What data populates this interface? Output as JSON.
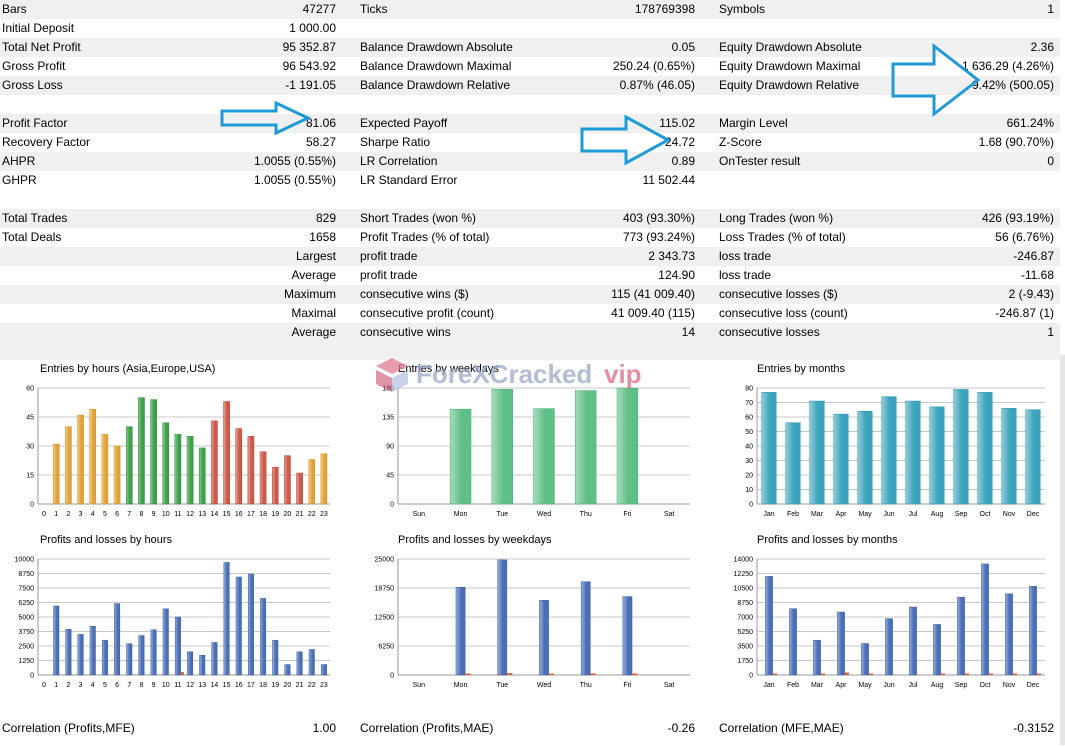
{
  "stats": {
    "rows": [
      {
        "shaded": true,
        "cells": [
          "Bars",
          "47277",
          "Ticks",
          "178769398",
          "Symbols",
          "1"
        ]
      },
      {
        "shaded": false,
        "cells": [
          "Initial Deposit",
          "1 000.00",
          "",
          "",
          "",
          ""
        ]
      },
      {
        "shaded": true,
        "cells": [
          "Total Net Profit",
          "95 352.87",
          "Balance Drawdown Absolute",
          "0.05",
          "Equity Drawdown Absolute",
          "2.36"
        ]
      },
      {
        "shaded": false,
        "cells": [
          "Gross Profit",
          "96 543.92",
          "Balance Drawdown Maximal",
          "250.24 (0.65%)",
          "Equity Drawdown Maximal",
          "1 636.29 (4.26%)"
        ]
      },
      {
        "shaded": true,
        "cells": [
          "Gross Loss",
          "-1 191.05",
          "Balance Drawdown Relative",
          "0.87% (46.05)",
          "Equity Drawdown Relative",
          "9.42% (500.05)"
        ]
      },
      {
        "shaded": false,
        "blank": true,
        "cells": [
          "",
          "",
          "",
          "",
          "",
          ""
        ]
      },
      {
        "shaded": true,
        "cells": [
          "Profit Factor",
          "81.06",
          "Expected Payoff",
          "115.02",
          "Margin Level",
          "661.24%"
        ]
      },
      {
        "shaded": false,
        "cells": [
          "Recovery Factor",
          "58.27",
          "Sharpe Ratio",
          "24.72",
          "Z-Score",
          "1.68 (90.70%)"
        ]
      },
      {
        "shaded": true,
        "cells": [
          "AHPR",
          "1.0055 (0.55%)",
          "LR Correlation",
          "0.89",
          "OnTester result",
          "0"
        ]
      },
      {
        "shaded": false,
        "cells": [
          "GHPR",
          "1.0055 (0.55%)",
          "LR Standard Error",
          "11 502.44",
          "",
          ""
        ]
      },
      {
        "shaded": false,
        "blank": true,
        "cells": [
          "",
          "",
          "",
          "",
          "",
          ""
        ]
      },
      {
        "shaded": true,
        "cells": [
          "Total Trades",
          "829",
          "Short Trades (won %)",
          "403 (93.30%)",
          "Long Trades (won %)",
          "426 (93.19%)"
        ]
      },
      {
        "shaded": false,
        "cells": [
          "Total Deals",
          "1658",
          "Profit Trades (% of total)",
          "773 (93.24%)",
          "Loss Trades (% of total)",
          "56 (6.76%)"
        ]
      },
      {
        "shaded": true,
        "right1": true,
        "cells": [
          "Largest",
          "",
          "profit trade",
          "2 343.73",
          "loss trade",
          "-246.87"
        ]
      },
      {
        "shaded": false,
        "right1": true,
        "cells": [
          "Average",
          "",
          "profit trade",
          "124.90",
          "loss trade",
          "-11.68"
        ]
      },
      {
        "shaded": true,
        "right1": true,
        "cells": [
          "Maximum",
          "",
          "consecutive wins ($)",
          "115 (41 009.40)",
          "consecutive losses ($)",
          "2 (-9.43)"
        ]
      },
      {
        "shaded": false,
        "right1": true,
        "cells": [
          "Maximal",
          "",
          "consecutive profit (count)",
          "41 009.40 (115)",
          "consecutive loss (count)",
          "-246.87 (1)"
        ]
      },
      {
        "shaded": true,
        "right1": true,
        "cells": [
          "Average",
          "",
          "consecutive wins",
          "14",
          "consecutive losses",
          "1"
        ]
      }
    ]
  },
  "watermark": {
    "text1": "ForeXCracked",
    "text2": "vip"
  },
  "correlation": {
    "cells": [
      "Correlation (Profits,MFE)",
      "1.00",
      "Correlation (Profits,MAE)",
      "-0.26",
      "Correlation (MFE,MAE)",
      "-0.3152"
    ]
  },
  "colors": {
    "orange": "#e1a23a",
    "green": "#3fa04b",
    "red": "#cc5a4a",
    "mint": "#5fbf86",
    "teal": "#3aa4bd",
    "blue": "#4a6fb8",
    "loss": "#d8603c",
    "arrow": "#1e9bd7"
  },
  "chart_data": [
    {
      "type": "bar",
      "title": "Entries by hours (Asia,Europe,USA)",
      "categories": [
        "0",
        "1",
        "2",
        "3",
        "4",
        "5",
        "6",
        "7",
        "8",
        "9",
        "10",
        "11",
        "12",
        "13",
        "14",
        "15",
        "16",
        "17",
        "18",
        "19",
        "20",
        "21",
        "22",
        "23"
      ],
      "values": [
        0,
        31,
        40,
        46,
        49,
        36,
        30,
        40,
        55,
        54,
        42,
        36,
        35,
        29,
        43,
        53,
        39,
        35,
        27,
        19,
        25,
        16,
        23,
        26
      ],
      "group_colors": [
        "orange",
        "orange",
        "orange",
        "orange",
        "orange",
        "orange",
        "orange",
        "green",
        "green",
        "green",
        "green",
        "green",
        "green",
        "green",
        "red",
        "red",
        "red",
        "red",
        "red",
        "red",
        "red",
        "red",
        "orange",
        "orange"
      ],
      "ylim": [
        0,
        60
      ],
      "yticks": [
        "0",
        "15",
        "30",
        "45",
        "60"
      ]
    },
    {
      "type": "bar",
      "title": "Entries by weekdays",
      "categories": [
        "Sun",
        "Mon",
        "Tue",
        "Wed",
        "Thu",
        "Fri",
        "Sat"
      ],
      "values": [
        0,
        147,
        178,
        148,
        176,
        180,
        0
      ],
      "ylim": [
        0,
        180
      ],
      "yticks": [
        "0",
        "45",
        "90",
        "135",
        "180"
      ]
    },
    {
      "type": "bar",
      "title": "Entries by months",
      "categories": [
        "Jan",
        "Feb",
        "Mar",
        "Apr",
        "May",
        "Jun",
        "Jul",
        "Aug",
        "Sep",
        "Oct",
        "Nov",
        "Dec"
      ],
      "values": [
        77,
        56,
        71,
        62,
        64,
        74,
        71,
        67,
        79,
        77,
        66,
        65
      ],
      "ylim": [
        0,
        80
      ],
      "yticks": [
        "0",
        "10",
        "20",
        "30",
        "40",
        "50",
        "60",
        "70",
        "80"
      ]
    },
    {
      "type": "bar",
      "title": "Profits and losses by hours",
      "categories": [
        "0",
        "1",
        "2",
        "3",
        "4",
        "5",
        "6",
        "7",
        "8",
        "9",
        "10",
        "11",
        "12",
        "13",
        "14",
        "15",
        "16",
        "17",
        "18",
        "19",
        "20",
        "21",
        "22",
        "23"
      ],
      "series": [
        {
          "values": [
            0,
            5950,
            3950,
            3500,
            4200,
            3000,
            6150,
            2700,
            3400,
            3900,
            5700,
            5000,
            2000,
            1700,
            2800,
            9700,
            8450,
            8700,
            6600,
            3000,
            900,
            2000,
            2200,
            900
          ]
        },
        {
          "values": [
            0,
            0,
            0,
            0,
            0,
            0,
            0,
            0,
            0,
            0,
            0,
            250,
            0,
            0,
            0,
            0,
            0,
            0,
            0,
            0,
            0,
            0,
            0,
            0
          ]
        }
      ],
      "ylim": [
        0,
        10000
      ],
      "yticks": [
        "0",
        "1250",
        "2500",
        "3750",
        "5000",
        "6250",
        "7500",
        "8750",
        "10000"
      ]
    },
    {
      "type": "bar",
      "title": "Profits and losses by weekdays",
      "categories": [
        "Sun",
        "Mon",
        "Tue",
        "Wed",
        "Thu",
        "Fri",
        "Sat"
      ],
      "series": [
        {
          "values": [
            0,
            18900,
            24800,
            16100,
            20100,
            16900,
            0
          ]
        },
        {
          "values": [
            0,
            300,
            400,
            200,
            250,
            200,
            0
          ]
        }
      ],
      "ylim": [
        0,
        25000
      ],
      "yticks": [
        "0",
        "6250",
        "12500",
        "18750",
        "25000"
      ]
    },
    {
      "type": "bar",
      "title": "Profits and losses by months",
      "categories": [
        "Jan",
        "Feb",
        "Mar",
        "Apr",
        "May",
        "Jun",
        "Jul",
        "Aug",
        "Sep",
        "Oct",
        "Nov",
        "Dec"
      ],
      "series": [
        {
          "values": [
            11900,
            8000,
            4200,
            7600,
            3800,
            6800,
            8200,
            6100,
            9400,
            13400,
            9800,
            10700
          ]
        },
        {
          "values": [
            100,
            0,
            50,
            300,
            50,
            0,
            0,
            50,
            150,
            150,
            50,
            50
          ]
        }
      ],
      "ylim": [
        0,
        14000
      ],
      "yticks": [
        "0",
        "1750",
        "3500",
        "5250",
        "7000",
        "8750",
        "10500",
        "12250",
        "14000"
      ]
    }
  ]
}
